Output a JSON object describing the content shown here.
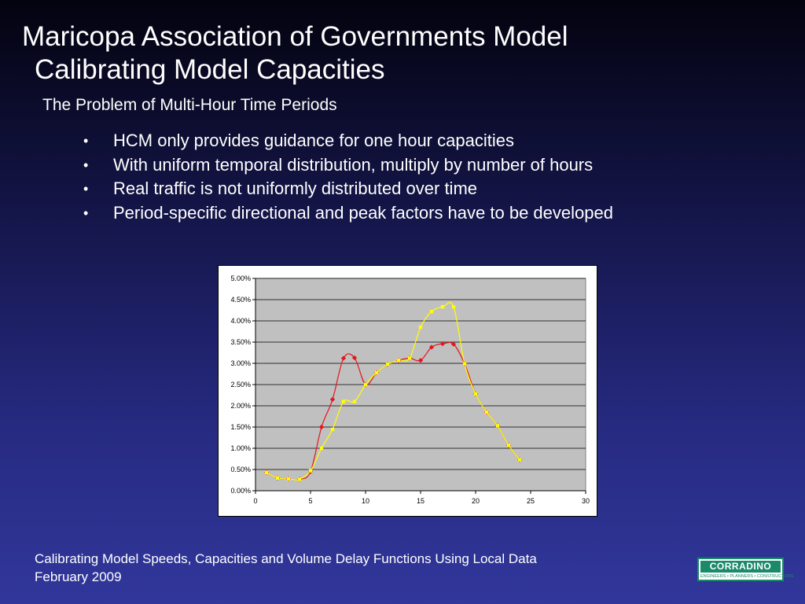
{
  "slide": {
    "title_line1": "Maricopa Association of Governments Model",
    "title_line2": "Calibrating Model Capacities",
    "subtitle": "The Problem of Multi-Hour Time Periods",
    "bullet_glyph": "•",
    "bullets": [
      "HCM only provides guidance for one hour capacities",
      "With uniform temporal distribution, multiply by number of hours",
      "Real traffic is not uniformly distributed over time",
      "Period-specific directional and peak factors have to be developed"
    ],
    "footer_line1": "Calibrating Model Speeds, Capacities and Volume Delay Functions Using Local Data",
    "footer_line2": "February 2009",
    "logo_text": "CORRADINO",
    "logo_tagline": "ENGINEERS • PLANNERS • CONSTRUCTORS"
  },
  "colors": {
    "background_top": "#03030f",
    "background_bottom": "#31379b",
    "plot_area": "#c0c0c0",
    "series_red": "#e4151b",
    "series_yellow": "#ffff00",
    "logo_green": "#1b8a6b"
  },
  "chart_data": {
    "type": "line",
    "title": "",
    "xlabel": "",
    "ylabel": "",
    "xlim": [
      0,
      30
    ],
    "ylim": [
      0,
      5.0
    ],
    "x_ticks": [
      0,
      5,
      10,
      15,
      20,
      25,
      30
    ],
    "y_ticks": [
      "0.00%",
      "0.50%",
      "1.00%",
      "1.50%",
      "2.00%",
      "2.50%",
      "3.00%",
      "3.50%",
      "4.00%",
      "4.50%",
      "5.00%"
    ],
    "grid": true,
    "legend": "none",
    "x": [
      1,
      2,
      3,
      4,
      5,
      6,
      7,
      8,
      9,
      10,
      11,
      12,
      13,
      14,
      15,
      16,
      17,
      18,
      19,
      20,
      21,
      22,
      23,
      24
    ],
    "series": [
      {
        "color": "#e4151b",
        "values": [
          0.43,
          0.3,
          0.28,
          0.27,
          0.45,
          1.5,
          2.15,
          3.12,
          3.13,
          2.5,
          2.78,
          2.98,
          3.07,
          3.12,
          3.07,
          3.38,
          3.46,
          3.45,
          2.99,
          2.28,
          1.85,
          1.53,
          1.07,
          0.73
        ]
      },
      {
        "color": "#ffff00",
        "values": [
          0.43,
          0.3,
          0.28,
          0.27,
          0.47,
          1.0,
          1.45,
          2.1,
          2.1,
          2.5,
          2.78,
          2.98,
          3.07,
          3.12,
          3.85,
          4.22,
          4.33,
          4.33,
          2.99,
          2.28,
          1.85,
          1.53,
          1.07,
          0.73
        ]
      }
    ]
  }
}
